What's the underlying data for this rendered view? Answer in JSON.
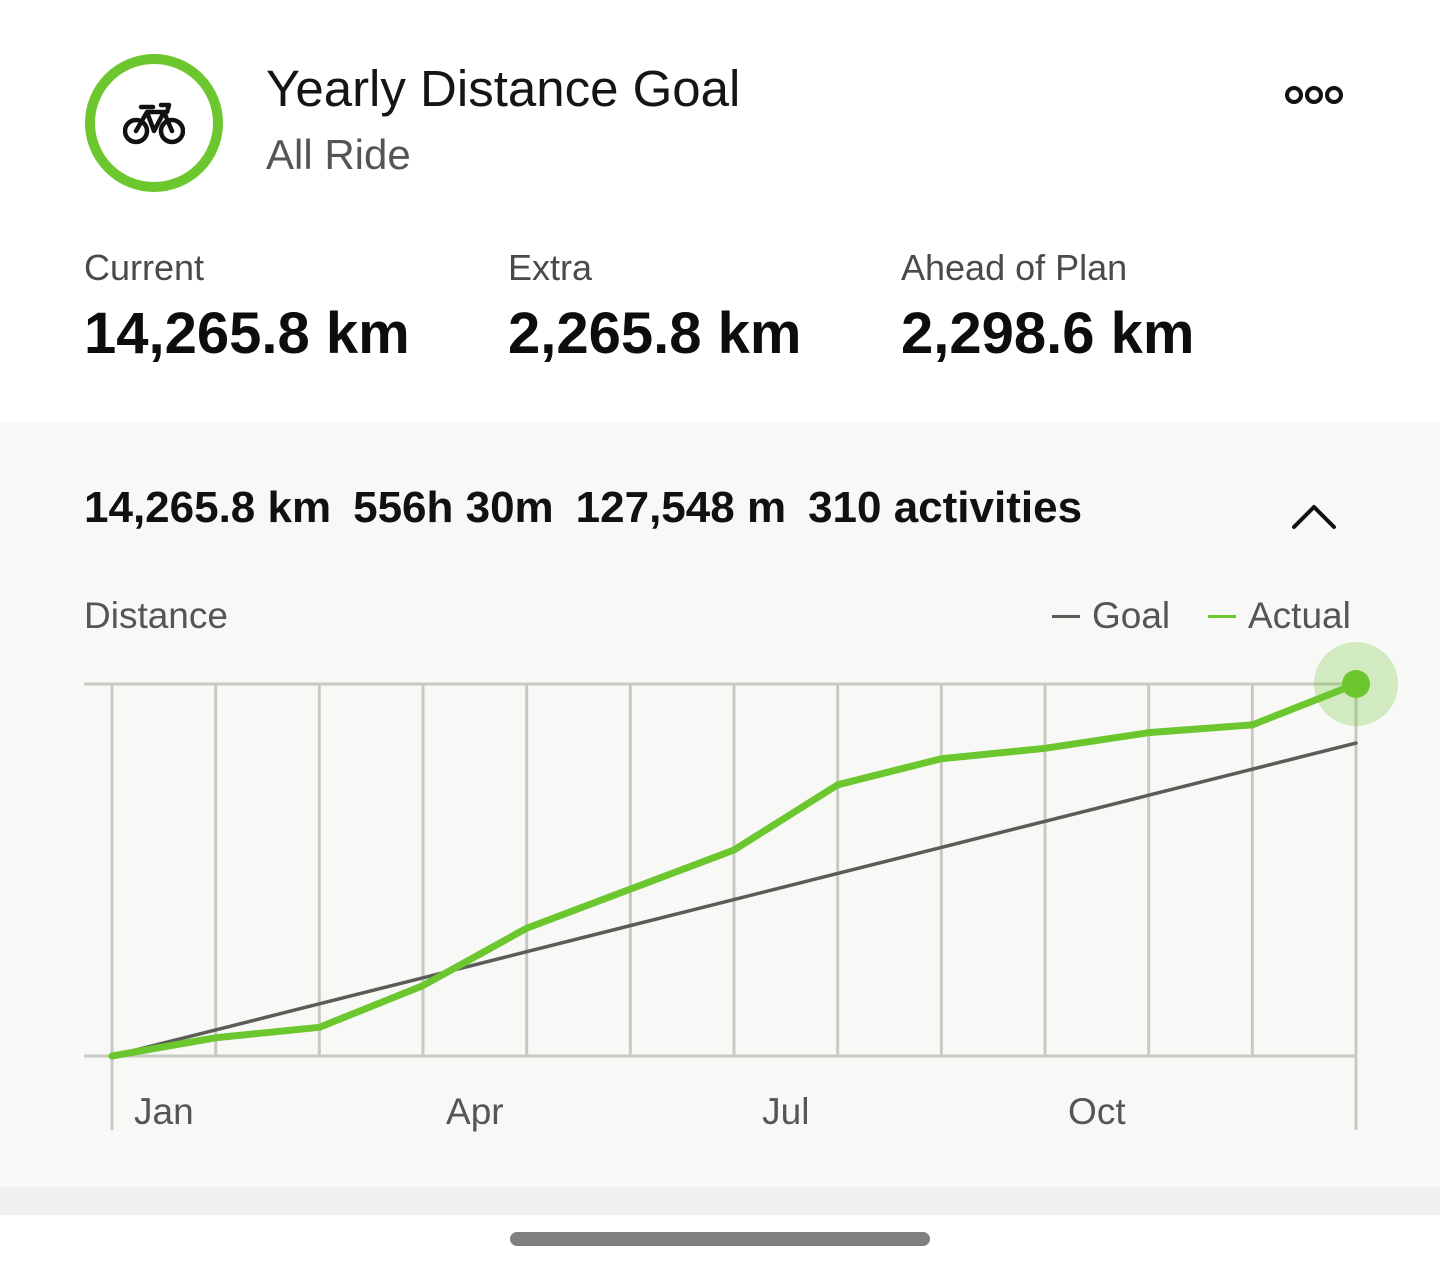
{
  "header": {
    "title": "Yearly Distance Goal",
    "subtitle": "All Ride",
    "icon": "bike-icon",
    "accent_color": "#6cc72f",
    "more_icon": "more-options-icon"
  },
  "stats": [
    {
      "label": "Current",
      "value": "14,265.8 km"
    },
    {
      "label": "Extra",
      "value": "2,265.8 km"
    },
    {
      "label": "Ahead of Plan",
      "value": "2,298.6 km"
    }
  ],
  "summary": {
    "distance": "14,265.8 km",
    "time": "556h 30m",
    "elevation": "127,548 m",
    "activities": "310 activities",
    "toggle_icon": "chevron-up-icon"
  },
  "chart_data": {
    "type": "line",
    "ylabel": "Distance",
    "x_tick_labels": [
      "Jan",
      "Apr",
      "Jul",
      "Oct"
    ],
    "x": [
      0,
      1,
      2,
      3,
      4,
      5,
      6,
      7,
      8,
      9,
      10,
      11,
      12
    ],
    "legend": {
      "placement": "top-right"
    },
    "grid": true,
    "ylim": [
      0,
      14265.8
    ],
    "series": [
      {
        "name": "Goal",
        "color": "#5b5b58",
        "values": [
          0,
          1000,
          2000,
          3000,
          4000,
          5000,
          6000,
          7000,
          8000,
          9000,
          10000,
          11000,
          12000
        ]
      },
      {
        "name": "Actual",
        "color": "#6cc72f",
        "values": [
          0,
          700,
          1100,
          2700,
          4900,
          6400,
          7900,
          10400,
          11400,
          11800,
          12400,
          12700,
          14265.8
        ]
      }
    ]
  }
}
